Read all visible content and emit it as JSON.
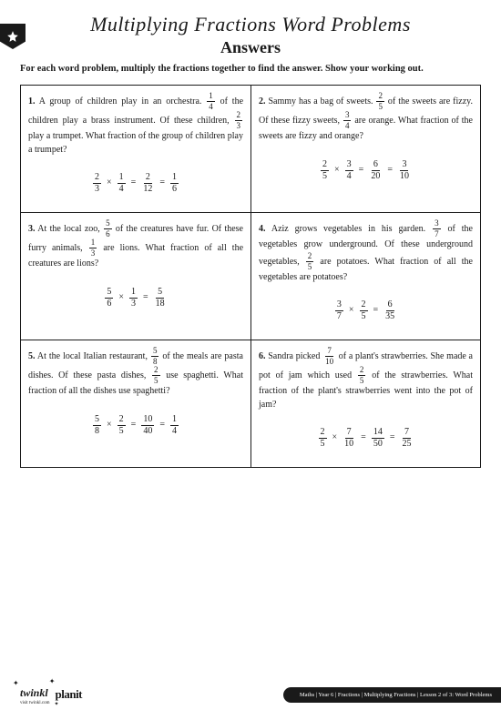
{
  "title": "Multiplying Fractions Word Problems",
  "subtitle": "Answers",
  "instructions": "For each word problem, multiply the fractions together to find the answer. Show your working out.",
  "footer": {
    "brand": "twinkl",
    "brand_sub": "visit twinkl.com",
    "product": "planit",
    "breadcrumb": "Maths | Year 6 | Fractions | Multiplying Fractions | Lesson 2 of 3: Word Problems"
  },
  "problems": [
    {
      "num": "1.",
      "pre1": " A group of children play in an orchestra. ",
      "f1n": "1",
      "f1d": "4",
      "mid1": " of the children play a brass instrument. Of these children, ",
      "f2n": "2",
      "f2d": "3",
      "post": " play a trumpet. What fraction of the group of children play a trumpet?",
      "eq": {
        "a_n": "2",
        "a_d": "3",
        "b_n": "1",
        "b_d": "4",
        "c_n": "2",
        "c_d": "12",
        "r_n": "1",
        "r_d": "6",
        "has_reduce": true
      }
    },
    {
      "num": "2.",
      "pre1": " Sammy has a bag of sweets. ",
      "f1n": "2",
      "f1d": "5",
      "mid1": " of the sweets are fizzy. Of these fizzy sweets, ",
      "f2n": "3",
      "f2d": "4",
      "post": " are orange. What fraction of the sweets are fizzy and orange?",
      "eq": {
        "a_n": "2",
        "a_d": "5",
        "b_n": "3",
        "b_d": "4",
        "c_n": "6",
        "c_d": "20",
        "r_n": "3",
        "r_d": "10",
        "has_reduce": true
      }
    },
    {
      "num": "3.",
      "pre1": " At the local zoo, ",
      "f1n": "5",
      "f1d": "6",
      "mid1": " of the creatures have fur. Of these furry animals, ",
      "f2n": "1",
      "f2d": "3",
      "post": " are lions. What fraction of all the creatures are lions?",
      "eq": {
        "a_n": "5",
        "a_d": "6",
        "b_n": "1",
        "b_d": "3",
        "c_n": "5",
        "c_d": "18",
        "has_reduce": false
      }
    },
    {
      "num": "4.",
      "pre1": " Aziz grows vegetables in his garden. ",
      "f1n": "3",
      "f1d": "7",
      "mid1": " of the vegetables grow underground. Of these underground vegetables, ",
      "f2n": "2",
      "f2d": "5",
      "post": " are potatoes. What fraction of all the vegetables are potatoes?",
      "eq": {
        "a_n": "3",
        "a_d": "7",
        "b_n": "2",
        "b_d": "5",
        "c_n": "6",
        "c_d": "35",
        "has_reduce": false
      }
    },
    {
      "num": "5.",
      "pre1": " At the local Italian restaurant, ",
      "f1n": "5",
      "f1d": "8",
      "mid1": " of the meals are pasta dishes. Of these pasta dishes, ",
      "f2n": "2",
      "f2d": "5",
      "post": " use spaghetti. What fraction of all the dishes use spaghetti?",
      "eq": {
        "a_n": "5",
        "a_d": "8",
        "b_n": "2",
        "b_d": "5",
        "c_n": "10",
        "c_d": "40",
        "r_n": "1",
        "r_d": "4",
        "has_reduce": true
      }
    },
    {
      "num": "6.",
      "pre1": " Sandra picked ",
      "f1n": "7",
      "f1d": "10",
      "mid1": " of a plant's strawberries. She made a pot of jam which used ",
      "f2n": "2",
      "f2d": "5",
      "post": " of the strawberries. What fraction of the plant's strawberries went into the pot of jam?",
      "eq": {
        "a_n": "2",
        "a_d": "5",
        "b_n": "7",
        "b_d": "10",
        "c_n": "14",
        "c_d": "50",
        "r_n": "7",
        "r_d": "25",
        "has_reduce": true
      }
    }
  ]
}
